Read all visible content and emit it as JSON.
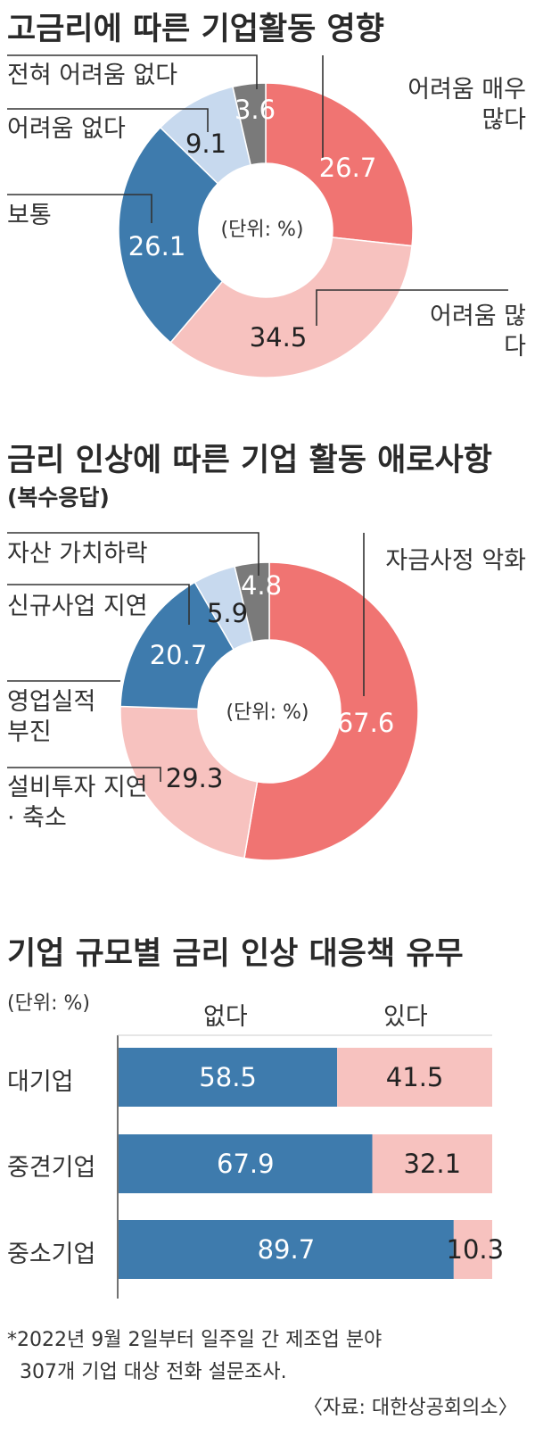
{
  "chart_data": [
    {
      "type": "pie",
      "title": "고금리에 따른 기업활동 영향",
      "unit_label": "(단위: %)",
      "slices": [
        {
          "label": "어려움 매우 많다",
          "value": 26.7,
          "color": "#f07472"
        },
        {
          "label": "어려움 많다",
          "value": 34.5,
          "color": "#f7c2bf"
        },
        {
          "label": "보통",
          "value": 26.1,
          "color": "#3e7bad"
        },
        {
          "label": "어려움 없다",
          "value": 9.1,
          "color": "#c7d9ee"
        },
        {
          "label": "전혀 어려움 없다",
          "value": 3.6,
          "color": "#7a7a7a"
        }
      ]
    },
    {
      "type": "pie",
      "title": "금리 인상에 따른 기업 활동 애로사항",
      "subtitle": "(복수응답)",
      "unit_label": "(단위: %)",
      "slices": [
        {
          "label": "자금사정 악화",
          "value": 67.6,
          "color": "#f07472"
        },
        {
          "label": "설비투자 지연 · 축소",
          "value": 29.3,
          "color": "#f7c2bf"
        },
        {
          "label": "영업실적 부진",
          "value": 20.7,
          "color": "#3e7bad"
        },
        {
          "label": "신규사업 지연",
          "value": 5.9,
          "color": "#c7d9ee"
        },
        {
          "label": "자산 가치하락",
          "value": 4.8,
          "color": "#7a7a7a"
        }
      ]
    },
    {
      "type": "bar",
      "orientation": "horizontal",
      "stacked": true,
      "title": "기업 규모별 금리 인상 대응책 유무",
      "unit_label": "(단위: %)",
      "categories": [
        "대기업",
        "중견기업",
        "중소기업"
      ],
      "series": [
        {
          "name": "없다",
          "values": [
            58.5,
            67.9,
            89.7
          ],
          "color": "#3e7bad"
        },
        {
          "name": "있다",
          "values": [
            41.5,
            32.1,
            10.3
          ],
          "color": "#f7c2bf"
        }
      ],
      "xlim": [
        0,
        100
      ]
    }
  ],
  "footnote": {
    "line1": "*2022년 9월 2일부터 일주일 간 제조업 분야",
    "line2": "307개 기업 대상 전화 설문조사.",
    "source": "〈자료: 대한상공회의소〉"
  }
}
